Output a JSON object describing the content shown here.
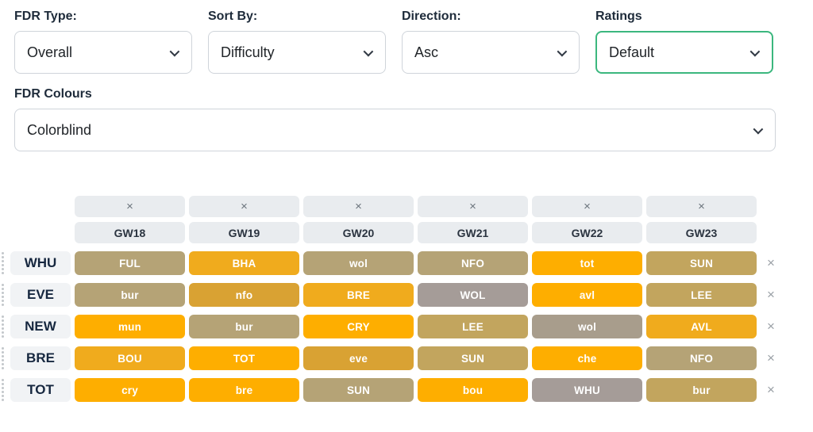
{
  "filters": [
    {
      "id": "fdr_type",
      "label": "FDR Type:",
      "value": "Overall"
    },
    {
      "id": "sort_by",
      "label": "Sort By:",
      "value": "Difficulty"
    },
    {
      "id": "direction",
      "label": "Direction:",
      "value": "Asc"
    },
    {
      "id": "ratings",
      "label": "Ratings",
      "value": "Default",
      "focused": true
    }
  ],
  "colours_filter": {
    "label": "FDR Colours",
    "value": "Colorblind"
  },
  "table": {
    "remove_symbol": "×",
    "gameweeks": [
      "GW18",
      "GW19",
      "GW20",
      "GW21",
      "GW22",
      "GW23"
    ],
    "palette": {
      "orange": "#FEAE00",
      "amber": "#F0AB1D",
      "gold": "#D9A233",
      "khaki": "#C2A55E",
      "tan": "#B5A376",
      "graytan": "#A89D8C",
      "gray": "#A59C98"
    },
    "rows": [
      {
        "team": "WHU",
        "fixtures": [
          {
            "label": "FUL",
            "color": "tan"
          },
          {
            "label": "BHA",
            "color": "amber"
          },
          {
            "label": "wol",
            "color": "tan"
          },
          {
            "label": "NFO",
            "color": "tan"
          },
          {
            "label": "tot",
            "color": "orange"
          },
          {
            "label": "SUN",
            "color": "khaki"
          }
        ]
      },
      {
        "team": "EVE",
        "fixtures": [
          {
            "label": "bur",
            "color": "tan"
          },
          {
            "label": "nfo",
            "color": "gold"
          },
          {
            "label": "BRE",
            "color": "amber"
          },
          {
            "label": "WOL",
            "color": "gray"
          },
          {
            "label": "avl",
            "color": "orange"
          },
          {
            "label": "LEE",
            "color": "khaki"
          }
        ]
      },
      {
        "team": "NEW",
        "fixtures": [
          {
            "label": "mun",
            "color": "orange"
          },
          {
            "label": "bur",
            "color": "tan"
          },
          {
            "label": "CRY",
            "color": "orange"
          },
          {
            "label": "LEE",
            "color": "khaki"
          },
          {
            "label": "wol",
            "color": "graytan"
          },
          {
            "label": "AVL",
            "color": "amber"
          }
        ]
      },
      {
        "team": "BRE",
        "fixtures": [
          {
            "label": "BOU",
            "color": "amber"
          },
          {
            "label": "TOT",
            "color": "orange"
          },
          {
            "label": "eve",
            "color": "gold"
          },
          {
            "label": "SUN",
            "color": "khaki"
          },
          {
            "label": "che",
            "color": "orange"
          },
          {
            "label": "NFO",
            "color": "tan"
          }
        ]
      },
      {
        "team": "TOT",
        "fixtures": [
          {
            "label": "cry",
            "color": "orange"
          },
          {
            "label": "bre",
            "color": "orange"
          },
          {
            "label": "SUN",
            "color": "tan"
          },
          {
            "label": "bou",
            "color": "orange"
          },
          {
            "label": "WHU",
            "color": "gray"
          },
          {
            "label": "bur",
            "color": "khaki"
          }
        ]
      }
    ]
  }
}
